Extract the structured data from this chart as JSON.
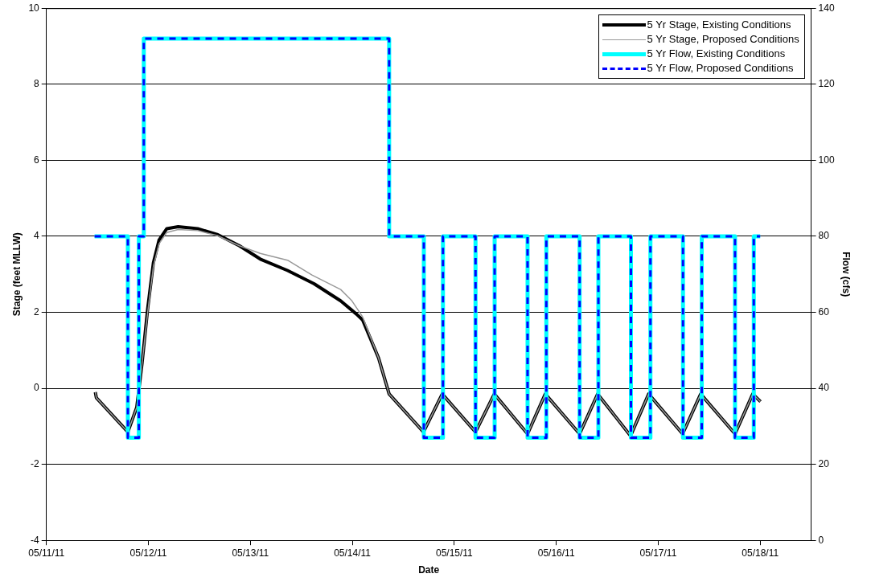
{
  "chart_data": {
    "type": "line",
    "xlabel": "Date",
    "ylabel": "Stage (feet MLLW)",
    "y2label": "Flow (cfs)",
    "xlim": [
      "--05-11",
      "--05-18T12:00"
    ],
    "xticks": [
      {
        "value": "--05-11",
        "label": "05/11/11"
      },
      {
        "value": "--05-12",
        "label": "05/12/11"
      },
      {
        "value": "--05-13",
        "label": "05/13/11"
      },
      {
        "value": "--05-14",
        "label": "05/14/11"
      },
      {
        "value": "--05-15",
        "label": "05/15/11"
      },
      {
        "value": "--05-16",
        "label": "05/16/11"
      },
      {
        "value": "--05-17",
        "label": "05/17/11"
      },
      {
        "value": "--05-18",
        "label": "05/18/11"
      }
    ],
    "ylim": [
      -4,
      10
    ],
    "yticks": [
      -4,
      -2,
      0,
      2,
      4,
      6,
      8,
      10
    ],
    "y2lim": [
      0,
      140
    ],
    "y2ticks": [
      0,
      20,
      40,
      60,
      80,
      100,
      120,
      140
    ],
    "grid": "y",
    "legend": "top right",
    "line_style": "solid",
    "series": [
      {
        "name": "5 Yr Stage, Existing Conditions",
        "color": "#000000",
        "x": [
          "--05-11T11:30",
          "--05-11T11:45",
          "--05-11T19:10",
          "--05-11T21:15",
          "--05-11T22:30",
          "--05-11T23:50",
          "--05-12T01:10",
          "--05-12T02:30",
          "--05-12T04:20",
          "--05-12T07:00",
          "--05-12T11:35",
          "--05-12T16:10",
          "--05-12T21:25",
          "--05-13T02:20",
          "--05-13T08:45",
          "--05-13T15:00",
          "--05-13T21:15",
          "--05-14T01:00",
          "--05-14T02:25",
          "--05-14T06:10",
          "--05-14T08:40",
          "--05-14T16:45",
          "--05-14T21:10",
          "--05-15T05:00",
          "--05-15T09:25",
          "--05-15T17:15",
          "--05-15T21:25",
          "--05-16T05:30",
          "--05-16T09:45",
          "--05-16T17:30",
          "--05-16T21:45",
          "--05-17T05:45",
          "--05-17T10:00",
          "--05-17T18:05",
          "--05-17T22:15",
          "--05-18T00:05"
        ],
        "values": [
          -0.1,
          -0.25,
          -1.15,
          -0.5,
          0.65,
          2.1,
          3.3,
          3.9,
          4.2,
          4.25,
          4.2,
          4.05,
          3.75,
          3.4,
          3.1,
          2.75,
          2.3,
          1.95,
          1.8,
          0.8,
          -0.15,
          -1.15,
          -0.15,
          -1.15,
          -0.15,
          -1.2,
          -0.15,
          -1.2,
          -0.15,
          -1.25,
          -0.15,
          -1.2,
          -0.15,
          -1.2,
          -0.15,
          -0.35
        ]
      },
      {
        "name": "5 Yr Stage, Proposed Conditions",
        "color": "#999999",
        "x": [
          "--05-11T11:30",
          "--05-11T11:45",
          "--05-11T19:10",
          "--05-11T21:15",
          "--05-11T22:30",
          "--05-11T23:50",
          "--05-12T01:10",
          "--05-12T02:30",
          "--05-12T04:20",
          "--05-12T07:00",
          "--05-12T11:35",
          "--05-12T16:10",
          "--05-12T21:25",
          "--05-13T02:20",
          "--05-13T08:45",
          "--05-13T14:30",
          "--05-13T21:15",
          "--05-13T23:55",
          "--05-14T02:25",
          "--05-14T06:10",
          "--05-14T08:40",
          "--05-14T16:45",
          "--05-14T21:10",
          "--05-15T05:00",
          "--05-15T09:25",
          "--05-15T17:15",
          "--05-15T21:25",
          "--05-16T05:30",
          "--05-16T09:45",
          "--05-16T17:30",
          "--05-16T21:45",
          "--05-17T05:45",
          "--05-17T10:00",
          "--05-17T18:05",
          "--05-17T22:15",
          "--05-18T00:05"
        ],
        "values": [
          -0.1,
          -0.25,
          -1.15,
          -0.5,
          0.65,
          2.0,
          3.2,
          3.8,
          4.1,
          4.18,
          4.15,
          4.02,
          3.75,
          3.55,
          3.37,
          2.98,
          2.6,
          2.3,
          1.88,
          0.8,
          -0.15,
          -1.15,
          -0.15,
          -1.15,
          -0.15,
          -1.2,
          -0.15,
          -1.2,
          -0.15,
          -1.25,
          -0.15,
          -1.2,
          -0.15,
          -1.2,
          -0.15,
          -0.35
        ]
      },
      {
        "name": "5 Yr Flow, Existing Conditions",
        "color": "#00ffff",
        "type": "step",
        "axis": "y2",
        "x": [
          "--05-11T11:20",
          "--05-11T19:10",
          "--05-11T21:45",
          "--05-11T22:55",
          "--05-14T08:40",
          "--05-14T16:50",
          "--05-14T21:20",
          "--05-15T05:00",
          "--05-15T09:30",
          "--05-15T17:15",
          "--05-15T21:40",
          "--05-16T05:30",
          "--05-16T09:55",
          "--05-16T17:35",
          "--05-16T22:10",
          "--05-17T05:50",
          "--05-17T10:15",
          "--05-17T18:05",
          "--05-17T22:30",
          "--05-18T00:00"
        ],
        "values": [
          80,
          27,
          80,
          132,
          80,
          27,
          80,
          27,
          80,
          27,
          80,
          27,
          80,
          27,
          80,
          27,
          80,
          27,
          80,
          80
        ]
      },
      {
        "name": "5 Yr Flow, Proposed Conditions",
        "color": "#0000ff",
        "type": "step",
        "axis": "y2",
        "line_style": "dashed",
        "x": [
          "--05-11T11:20",
          "--05-11T19:10",
          "--05-11T21:45",
          "--05-11T22:55",
          "--05-14T08:40",
          "--05-14T16:50",
          "--05-14T21:20",
          "--05-15T05:00",
          "--05-15T09:30",
          "--05-15T17:15",
          "--05-15T21:40",
          "--05-16T05:30",
          "--05-16T09:55",
          "--05-16T17:35",
          "--05-16T22:10",
          "--05-17T05:50",
          "--05-17T10:15",
          "--05-17T18:05",
          "--05-17T22:30",
          "--05-18T00:00"
        ],
        "values": [
          80,
          27,
          80,
          132,
          80,
          27,
          80,
          27,
          80,
          27,
          80,
          27,
          80,
          27,
          80,
          27,
          80,
          27,
          80,
          80
        ]
      }
    ]
  }
}
